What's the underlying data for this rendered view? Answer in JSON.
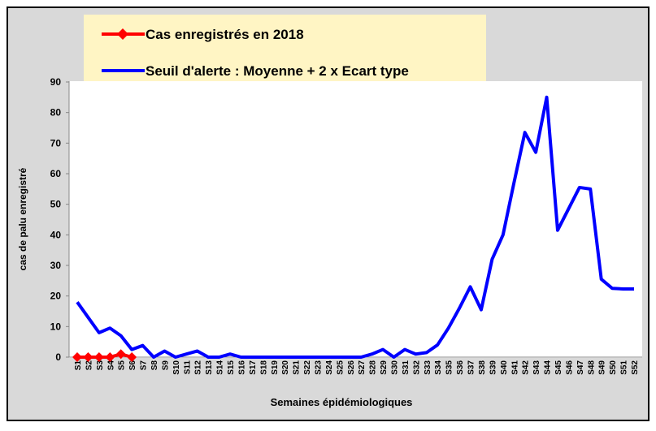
{
  "chart_data": {
    "type": "line",
    "x_label": "Semaines épidémiologiques",
    "y_label": "cas de palu enregistré",
    "categories": [
      "S1",
      "S2",
      "S3",
      "S4",
      "S5",
      "S6",
      "S7",
      "S8",
      "S9",
      "S10",
      "S11",
      "S12",
      "S13",
      "S14",
      "S15",
      "S16",
      "S17",
      "S18",
      "S19",
      "S20",
      "S21",
      "S22",
      "S23",
      "S24",
      "S25",
      "S26",
      "S27",
      "S28",
      "S29",
      "S30",
      "S31",
      "S32",
      "S33",
      "S34",
      "S35",
      "S36",
      "S37",
      "S38",
      "S39",
      "S40",
      "S41",
      "S42",
      "S43",
      "S44",
      "S45",
      "S46",
      "S47",
      "S48",
      "S49",
      "S50",
      "S51",
      "S52"
    ],
    "series": [
      {
        "name": "Cas enregistrés en 2018",
        "color": "#ff0000",
        "marker": "diamond",
        "values": [
          0,
          0,
          0,
          0,
          1,
          0,
          null,
          null,
          null,
          null,
          null,
          null,
          null,
          null,
          null,
          null,
          null,
          null,
          null,
          null,
          null,
          null,
          null,
          null,
          null,
          null,
          null,
          null,
          null,
          null,
          null,
          null,
          null,
          null,
          null,
          null,
          null,
          null,
          null,
          null,
          null,
          null,
          null,
          null,
          null,
          null,
          null,
          null,
          null,
          null,
          null,
          null
        ]
      },
      {
        "name": "Seuil d'alerte : Moyenne + 2 x Ecart type",
        "color": "#0000ff",
        "values": [
          18,
          13,
          8,
          9.5,
          7,
          2.5,
          3.8,
          0,
          2,
          0,
          1,
          2,
          0,
          0,
          1,
          0,
          0,
          0,
          0,
          0,
          0,
          0,
          0,
          0,
          0,
          0,
          0,
          1,
          2.5,
          0,
          2.5,
          1,
          1.5,
          4,
          9.5,
          16,
          23,
          15.5,
          32,
          40,
          57,
          73.5,
          67,
          85,
          41.5,
          48.5,
          55.5,
          55,
          25.5,
          22.5,
          22.3,
          22.3
        ]
      }
    ],
    "ylim": [
      0,
      90
    ],
    "yticks": [
      0,
      10,
      20,
      30,
      40,
      50,
      60,
      70,
      80,
      90
    ],
    "grid": false
  }
}
